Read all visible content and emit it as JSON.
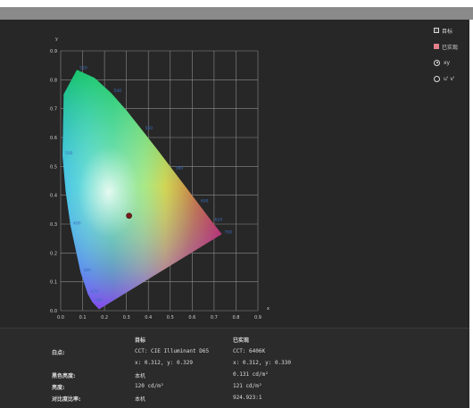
{
  "chart_data": {
    "type": "scatter",
    "title": "",
    "xlabel": "x",
    "ylabel": "y",
    "xlim": [
      0,
      0.9
    ],
    "ylim": [
      0,
      0.9
    ],
    "x_ticks": [
      "0.0",
      "0.1",
      "0.2",
      "0.3",
      "0.4",
      "0.5",
      "0.6",
      "0.7",
      "0.8",
      "0.9"
    ],
    "y_ticks": [
      "0.0",
      "0.1",
      "0.2",
      "0.3",
      "0.4",
      "0.5",
      "0.6",
      "0.7",
      "0.8",
      "0.9"
    ],
    "grid": true,
    "series": [
      {
        "values": [
          {
            "x": 0.312,
            "y": 0.329
          }
        ]
      }
    ],
    "locus_labels": [
      {
        "text": "520",
        "x": 0.074,
        "y": 0.834
      },
      {
        "text": "540",
        "x": 0.23,
        "y": 0.754
      },
      {
        "text": "560",
        "x": 0.373,
        "y": 0.624
      },
      {
        "text": "580",
        "x": 0.512,
        "y": 0.487
      },
      {
        "text": "600",
        "x": 0.627,
        "y": 0.372
      },
      {
        "text": "620",
        "x": 0.691,
        "y": 0.308
      },
      {
        "text": "700",
        "x": 0.735,
        "y": 0.265
      },
      {
        "text": "500",
        "x": 0.008,
        "y": 0.538
      },
      {
        "text": "490",
        "x": 0.045,
        "y": 0.295
      },
      {
        "text": "480",
        "x": 0.091,
        "y": 0.133
      },
      {
        "text": "470",
        "x": 0.124,
        "y": 0.058
      },
      {
        "text": "460",
        "x": 0.144,
        "y": 0.03
      }
    ]
  },
  "legend": {
    "target_label": "目标",
    "actual_label": "已实现",
    "radio_xy_label": "xy",
    "radio_uv_label": "u' v'"
  },
  "colors": {
    "point": "#7a1a1a",
    "panel": "#272727",
    "grid": "#8a8a8a",
    "locus_label": "#3a6ec0"
  },
  "table": {
    "header_target": "目标",
    "header_actual": "已实现",
    "rows": [
      {
        "label": "白点:",
        "target": "CCT: CIE Illuminant D65",
        "actual": "CCT: 6406K"
      },
      {
        "label": "",
        "target": "x: 0.312, y: 0.329",
        "actual": "x: 0.312, y: 0.330"
      },
      {
        "label": "黑色亮度:",
        "target": "本机",
        "actual": "0.131 cd/m²"
      },
      {
        "label": "亮度:",
        "target": "120 cd/m²",
        "actual": "121 cd/m²"
      },
      {
        "label": "对比度比率:",
        "target": "本机",
        "actual": "924.923:1"
      }
    ]
  }
}
